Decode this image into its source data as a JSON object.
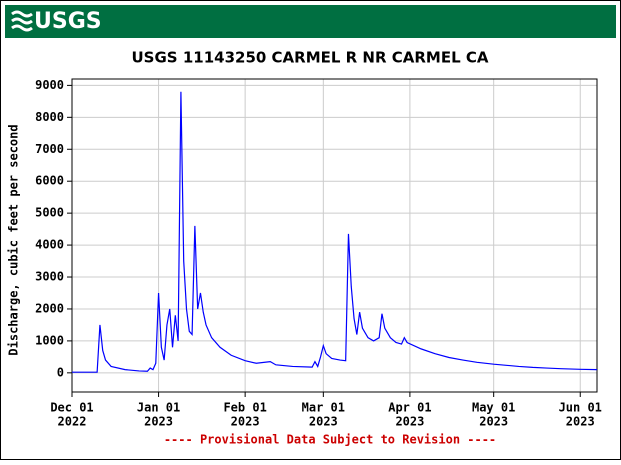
{
  "header": {
    "logo": "USGS"
  },
  "chart_data": {
    "type": "line",
    "title": "USGS 11143250 CARMEL R NR CARMEL CA",
    "y_label": "Discharge, cubic feet per second",
    "annotation": "---- Provisional Data Subject to Revision ----",
    "xlim": [
      "2022-12-01",
      "2023-06-07"
    ],
    "xticks": [
      {
        "value": "2022-12-01",
        "label": "Dec 01",
        "year": "2022"
      },
      {
        "value": "2023-01-01",
        "label": "Jan 01",
        "year": "2023"
      },
      {
        "value": "2023-02-01",
        "label": "Feb 01",
        "year": "2023"
      },
      {
        "value": "2023-03-01",
        "label": "Mar 01",
        "year": "2023"
      },
      {
        "value": "2023-04-01",
        "label": "Apr 01",
        "year": "2023"
      },
      {
        "value": "2023-05-01",
        "label": "May 01",
        "year": "2023"
      },
      {
        "value": "2023-06-01",
        "label": "Jun 01",
        "year": "2023"
      }
    ],
    "ylim": [
      -600,
      9200
    ],
    "yticks": [
      0,
      1000,
      2000,
      3000,
      4000,
      5000,
      6000,
      7000,
      8000,
      9000
    ],
    "grid": true,
    "x": [
      "2022-12-01",
      "2022-12-10",
      "2022-12-11",
      "2022-12-12",
      "2022-12-13",
      "2022-12-15",
      "2022-12-20",
      "2022-12-25",
      "2022-12-28",
      "2022-12-29",
      "2022-12-30",
      "2022-12-31",
      "2023-01-01",
      "2023-01-02",
      "2023-01-03",
      "2023-01-04",
      "2023-01-05",
      "2023-01-06",
      "2023-01-07",
      "2023-01-08",
      "2023-01-09",
      "2023-01-10",
      "2023-01-11",
      "2023-01-12",
      "2023-01-13",
      "2023-01-14",
      "2023-01-15",
      "2023-01-16",
      "2023-01-17",
      "2023-01-18",
      "2023-01-20",
      "2023-01-23",
      "2023-01-27",
      "2023-02-01",
      "2023-02-05",
      "2023-02-10",
      "2023-02-12",
      "2023-02-18",
      "2023-02-25",
      "2023-02-26",
      "2023-02-27",
      "2023-02-28",
      "2023-03-01",
      "2023-03-02",
      "2023-03-04",
      "2023-03-07",
      "2023-03-09",
      "2023-03-10",
      "2023-03-11",
      "2023-03-12",
      "2023-03-13",
      "2023-03-14",
      "2023-03-15",
      "2023-03-17",
      "2023-03-19",
      "2023-03-21",
      "2023-03-22",
      "2023-03-23",
      "2023-03-25",
      "2023-03-27",
      "2023-03-29",
      "2023-03-30",
      "2023-03-31",
      "2023-04-05",
      "2023-04-10",
      "2023-04-15",
      "2023-04-20",
      "2023-04-25",
      "2023-05-01",
      "2023-05-05",
      "2023-05-10",
      "2023-05-15",
      "2023-05-20",
      "2023-05-25",
      "2023-06-01",
      "2023-06-07"
    ],
    "series": [
      {
        "name": "Discharge",
        "color": "#0000ff",
        "values": [
          20,
          20,
          1500,
          700,
          400,
          200,
          100,
          60,
          50,
          150,
          100,
          300,
          2500,
          800,
          400,
          1500,
          2000,
          800,
          1800,
          1000,
          8800,
          3500,
          2000,
          1300,
          1200,
          4600,
          2000,
          2500,
          1900,
          1500,
          1100,
          800,
          550,
          380,
          300,
          350,
          250,
          200,
          180,
          350,
          200,
          500,
          850,
          600,
          450,
          400,
          380,
          4350,
          2700,
          1700,
          1200,
          1900,
          1400,
          1100,
          1000,
          1100,
          1850,
          1400,
          1100,
          950,
          900,
          1100,
          950,
          750,
          600,
          480,
          400,
          330,
          270,
          240,
          200,
          170,
          150,
          130,
          110,
          100
        ]
      }
    ]
  }
}
